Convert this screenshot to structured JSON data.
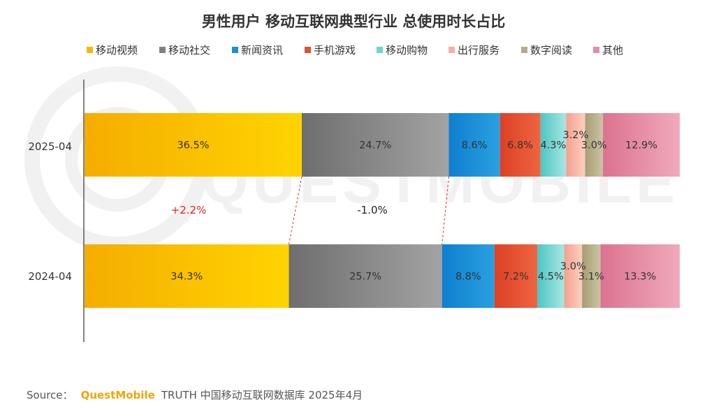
{
  "chart_data": {
    "type": "bar",
    "orientation": "horizontal",
    "stacked": "100%",
    "title": "男性用户 移动互联网典型行业 总使用时长占比",
    "categories": [
      "2025-04",
      "2024-04"
    ],
    "series": [
      {
        "name": "移动视频",
        "color": "#f5b800",
        "values": [
          36.5,
          34.3
        ],
        "labels": [
          "36.5%",
          "34.3%"
        ]
      },
      {
        "name": "移动社交",
        "color": "#808080",
        "values": [
          24.7,
          25.7
        ],
        "labels": [
          "24.7%",
          "25.7%"
        ]
      },
      {
        "name": "新闻资讯",
        "color": "#1a8fd6",
        "values": [
          8.6,
          8.8
        ],
        "labels": [
          "8.6%",
          "8.8%"
        ]
      },
      {
        "name": "手机游戏",
        "color": "#e2502e",
        "values": [
          6.8,
          7.2
        ],
        "labels": [
          "6.8%",
          "7.2%"
        ]
      },
      {
        "name": "移动购物",
        "color": "#6fd3cf",
        "values": [
          4.3,
          4.5
        ],
        "labels": [
          "4.3%",
          "4.5%"
        ]
      },
      {
        "name": "出行服务",
        "color": "#f7b0a0",
        "values": [
          3.2,
          3.0
        ],
        "labels": [
          "3.2%",
          "3.0%"
        ]
      },
      {
        "name": "数字阅读",
        "color": "#b4ab86",
        "values": [
          3.0,
          3.1
        ],
        "labels": [
          "3.0%",
          "3.1%"
        ]
      },
      {
        "name": "其他",
        "color": "#e48ea6",
        "values": [
          12.9,
          13.3
        ],
        "labels": [
          "12.9%",
          "13.3%"
        ]
      }
    ],
    "annotations": [
      {
        "text": "+2.2%",
        "series": "移动视频",
        "color": "#d9262b"
      },
      {
        "text": "-1.0%",
        "series": "移动社交",
        "color": "#222222"
      }
    ],
    "legend_position": "top",
    "grid": false
  },
  "source": {
    "prefix": "Source：",
    "brand": "QuestMobile",
    "text": "TRUTH 中国移动互联网数据库 2025年4月"
  },
  "watermark": "QUESTMOBILE"
}
